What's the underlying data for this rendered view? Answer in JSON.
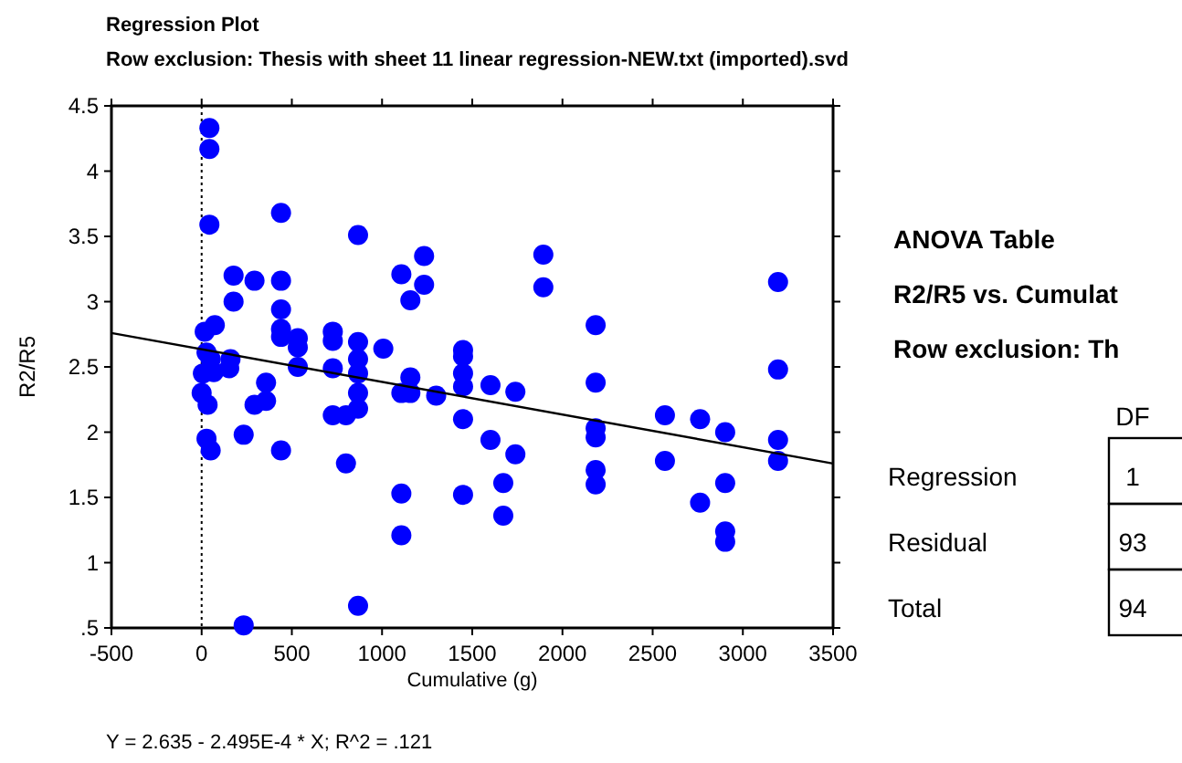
{
  "chart_data": [
    {
      "type": "scatter",
      "title": "Regression Plot",
      "subtitle": "Row exclusion: Thesis with sheet 11 linear regression-NEW.txt (imported).svd",
      "xlabel": "Cumulative (g)",
      "ylabel": "R2/R5",
      "xlim": [
        -500,
        3500
      ],
      "xticks": [
        -500,
        0,
        500,
        1000,
        1500,
        2000,
        2500,
        3000,
        3500
      ],
      "ylim": [
        0.5,
        4.5
      ],
      "yticks": [
        {
          "value": 0.5,
          "label": ".5"
        },
        1,
        1.5,
        2,
        2.5,
        3,
        3.5,
        4,
        4.5
      ],
      "grid": false,
      "marker": "circle",
      "series": [
        {
          "type": "scatter",
          "color": "#0000ff",
          "x": [
            43,
            43,
            43,
            17,
            73,
            27,
            50,
            7,
            67,
            0,
            33,
            27,
            50,
            160,
            153,
            177,
            177,
            293,
            233,
            233,
            293,
            357,
            357,
            440,
            440,
            440,
            440,
            440,
            440,
            533,
            533,
            533,
            727,
            727,
            727,
            727,
            800,
            800,
            867,
            867,
            867,
            867,
            867,
            867,
            867,
            1007,
            1107,
            1107,
            1107,
            1107,
            1157,
            1157,
            1157,
            1233,
            1233,
            1300,
            1449,
            1449,
            1449,
            1449,
            1449,
            1449,
            1601,
            1601,
            1672,
            1672,
            1739,
            1739,
            1894,
            1894,
            2184,
            2184,
            2184,
            2184,
            2184,
            2184,
            2568,
            2568,
            2763,
            2763,
            2902,
            2902,
            2902,
            2902,
            3195,
            3195,
            3195,
            3195
          ],
          "values": [
            4.33,
            4.17,
            3.59,
            2.77,
            2.82,
            2.61,
            2.56,
            2.45,
            2.46,
            2.3,
            2.21,
            1.95,
            1.86,
            2.56,
            2.49,
            3.2,
            3.0,
            3.16,
            1.98,
            0.52,
            2.21,
            2.24,
            2.38,
            3.68,
            3.16,
            2.94,
            2.79,
            2.73,
            1.86,
            2.72,
            2.65,
            2.5,
            2.77,
            2.7,
            2.49,
            2.13,
            2.13,
            1.76,
            3.51,
            2.69,
            2.56,
            2.45,
            2.3,
            2.18,
            0.67,
            2.64,
            3.21,
            2.3,
            1.53,
            1.21,
            3.01,
            2.42,
            2.3,
            3.35,
            3.13,
            2.28,
            2.63,
            2.58,
            2.45,
            2.35,
            2.1,
            1.52,
            2.36,
            1.94,
            1.61,
            1.36,
            2.31,
            1.83,
            3.36,
            3.11,
            2.82,
            2.38,
            2.03,
            1.96,
            1.71,
            1.6,
            2.13,
            1.78,
            2.1,
            1.46,
            2.0,
            1.61,
            1.24,
            1.16,
            3.15,
            2.48,
            1.94,
            1.78
          ]
        },
        {
          "type": "line",
          "color": "#000000",
          "x": [
            -500,
            3500
          ],
          "values": [
            2.76,
            1.76
          ],
          "marker": "none",
          "line_style": "solid"
        }
      ],
      "ref_lines": [
        {
          "axis": "x",
          "value": 0,
          "color": "#000000",
          "line_style": "dotted"
        }
      ],
      "annotations": [
        "Y = 2.635 - 2.495E-4 * X; R^2 = .121"
      ]
    },
    {
      "type": "other",
      "title": "ANOVA Table",
      "subtitle": "R2/R5 vs. Cumulat",
      "annotations": [
        "Row exclusion: Th"
      ],
      "xlabel": "DF",
      "categories": [
        "Regression",
        "Residual",
        "Total"
      ],
      "values": [
        1,
        93,
        94
      ],
      "data_labels": true
    }
  ]
}
